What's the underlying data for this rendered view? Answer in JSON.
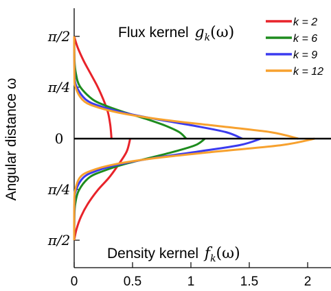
{
  "chart_data": {
    "type": "line",
    "ylabel": "Angular distance ω",
    "y_ticks": [
      "π/2",
      "π/4",
      "0",
      "π/4",
      "π/2"
    ],
    "x_ticks": [
      "0",
      "0.5",
      "1",
      "1.5",
      "2"
    ],
    "xlim": [
      0,
      2.2
    ],
    "upper_panel": {
      "title_text": "Flux kernel",
      "title_math": "g",
      "title_sub": "k",
      "title_arg": "(ω)",
      "ylim_omega": [
        0,
        1.5708
      ]
    },
    "lower_panel": {
      "title_text": "Density kernel",
      "title_math": "f",
      "title_sub": "k",
      "title_arg": "(ω)",
      "ylim_omega": [
        0,
        1.5708
      ]
    },
    "legend": [
      "k = 2",
      "k = 6",
      "k = 9",
      "k = 12"
    ],
    "series": [
      {
        "name": "k = 2",
        "color": "#e8232a",
        "upper": {
          "omega": [
            0,
            0.2,
            0.4,
            0.6,
            0.8,
            1.0,
            1.2,
            1.4,
            1.5708
          ],
          "value": [
            0.32,
            0.31,
            0.29,
            0.25,
            0.2,
            0.14,
            0.08,
            0.03,
            0
          ]
        },
        "lower": {
          "omega": [
            0,
            0.2,
            0.4,
            0.6,
            0.8,
            1.0,
            1.2,
            1.4,
            1.5708
          ],
          "value": [
            0.48,
            0.45,
            0.38,
            0.3,
            0.2,
            0.12,
            0.06,
            0.02,
            0
          ]
        }
      },
      {
        "name": "k = 6",
        "color": "#1e8c1e",
        "upper": {
          "omega": [
            0,
            0.1,
            0.2,
            0.3,
            0.4,
            0.5,
            0.6,
            0.8,
            1.0,
            1.2,
            1.5708
          ],
          "value": [
            0.96,
            0.9,
            0.78,
            0.62,
            0.44,
            0.28,
            0.16,
            0.05,
            0.015,
            0.003,
            0
          ]
        },
        "lower": {
          "omega": [
            0,
            0.1,
            0.2,
            0.3,
            0.4,
            0.5,
            0.6,
            0.8,
            1.0,
            1.2,
            1.5708
          ],
          "value": [
            1.12,
            1.04,
            0.86,
            0.64,
            0.42,
            0.25,
            0.13,
            0.04,
            0.01,
            0.002,
            0
          ]
        }
      },
      {
        "name": "k = 9",
        "color": "#3b3bef",
        "upper": {
          "omega": [
            0,
            0.1,
            0.2,
            0.3,
            0.4,
            0.5,
            0.6,
            0.8,
            1.0,
            1.5708
          ],
          "value": [
            1.44,
            1.3,
            1.02,
            0.7,
            0.42,
            0.22,
            0.1,
            0.02,
            0.004,
            0
          ]
        },
        "lower": {
          "omega": [
            0,
            0.1,
            0.2,
            0.3,
            0.4,
            0.5,
            0.6,
            0.8,
            1.0,
            1.5708
          ],
          "value": [
            1.6,
            1.42,
            1.06,
            0.68,
            0.38,
            0.19,
            0.08,
            0.015,
            0.003,
            0
          ]
        }
      },
      {
        "name": "k = 12",
        "color": "#f7a12e",
        "upper": {
          "omega": [
            0,
            0.1,
            0.2,
            0.3,
            0.4,
            0.5,
            0.6,
            0.8,
            1.0,
            1.5708
          ],
          "value": [
            1.92,
            1.68,
            1.2,
            0.72,
            0.38,
            0.17,
            0.07,
            0.01,
            0.002,
            0
          ]
        },
        "lower": {
          "omega": [
            0,
            0.1,
            0.2,
            0.3,
            0.4,
            0.5,
            0.6,
            0.8,
            1.0,
            1.5708
          ],
          "value": [
            2.06,
            1.78,
            1.22,
            0.7,
            0.34,
            0.14,
            0.05,
            0.008,
            0.001,
            0
          ]
        }
      }
    ]
  }
}
